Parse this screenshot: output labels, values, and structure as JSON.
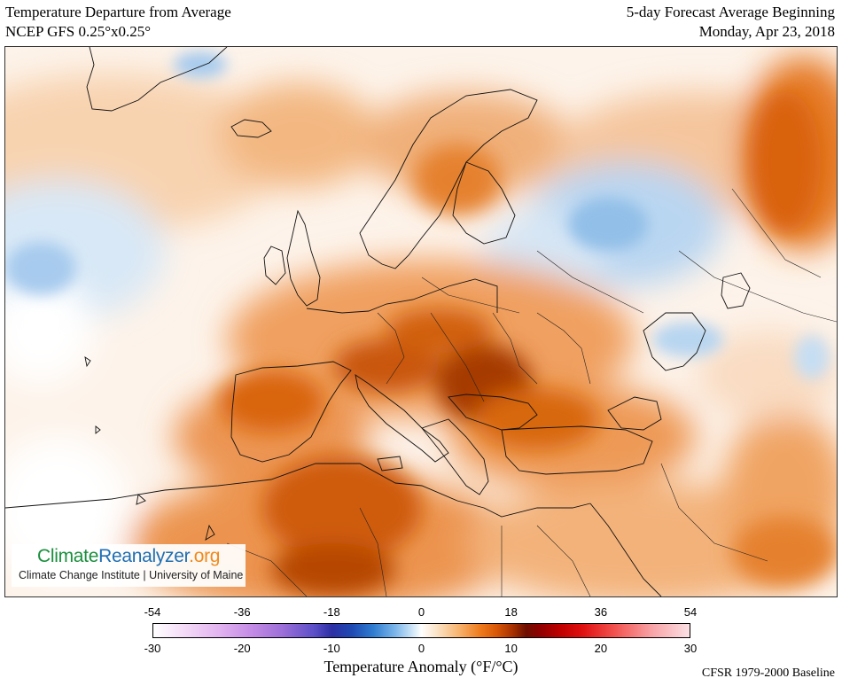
{
  "header": {
    "left_line1": "Temperature Departure from Average",
    "left_line2": "NCEP GFS 0.25°x0.25°",
    "right_line1": "5-day Forecast Average Beginning",
    "right_line2": "Monday, Apr 23, 2018"
  },
  "logo": {
    "part1": "Climate",
    "part2": "Reanalyzer",
    "part3": ".org",
    "subtitle": "Climate Change Institute | University of Maine",
    "colors": {
      "climate": "#1a8f3d",
      "reanalyzer": "#1f6fb3",
      "org": "#f08a1c"
    }
  },
  "colorbar": {
    "f_ticks": [
      "-54",
      "-36",
      "-18",
      "0",
      "18",
      "36",
      "54"
    ],
    "c_ticks": [
      "-30",
      "-20",
      "-10",
      "0",
      "10",
      "20",
      "30"
    ],
    "title": "Temperature Anomaly (°F/°C)",
    "baseline": "CFSR 1979-2000 Baseline"
  },
  "map": {
    "region": "Europe, North Africa and Middle East",
    "colors": {
      "land_base": "#fbe2c8",
      "warm": "#f2a25e",
      "hot": "#d2600e",
      "very_hot": "#8a2a00",
      "cool": "#c9def3",
      "cold": "#92bfe8"
    }
  }
}
